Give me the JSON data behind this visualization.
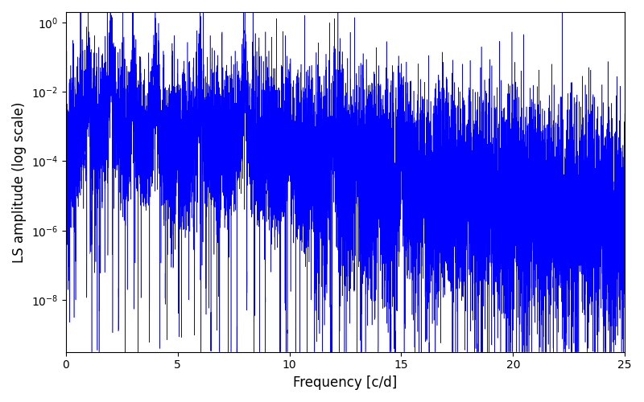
{
  "line_color": "#0000ff",
  "xlabel": "Frequency [c/d]",
  "ylabel": "LS amplitude (log scale)",
  "xlim": [
    0,
    25
  ],
  "ylim_log": [
    -9.5,
    0.3
  ],
  "freq_min": 0.0,
  "freq_max": 25.0,
  "n_points": 15000,
  "seed": 12345,
  "background_color": "#ffffff",
  "figsize": [
    8.0,
    5.0
  ],
  "dpi": 100,
  "linewidth": 0.4
}
